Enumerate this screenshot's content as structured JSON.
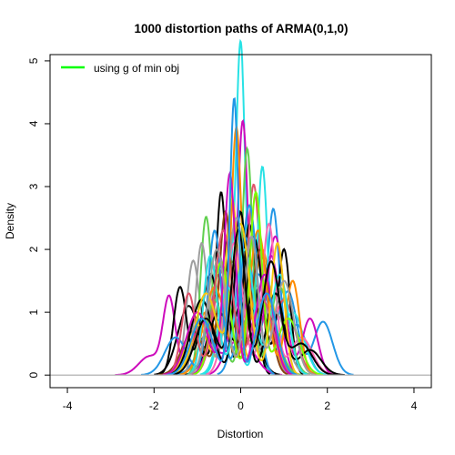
{
  "chart_data": {
    "type": "line",
    "title": "1000 distortion paths of ARMA(0,1,0)",
    "xlabel": "Distortion",
    "ylabel": "Density",
    "xlim": [
      -4.4,
      4.4
    ],
    "ylim": [
      -0.2,
      5.1
    ],
    "xticks": [
      -4,
      -2,
      0,
      2,
      4
    ],
    "yticks": [
      0,
      1,
      2,
      3,
      4,
      5
    ],
    "x_tick_labels": [
      "-4",
      "-2",
      "0",
      "2",
      "4"
    ],
    "y_tick_labels": [
      "0",
      "1",
      "2",
      "3",
      "4",
      "5"
    ],
    "n_paths": 1000,
    "reference_line": {
      "y": 0,
      "color": "#bebebe"
    },
    "legend": {
      "position": "top-left",
      "entries": [
        {
          "label": "using g of min obj",
          "color": "#00ff00"
        }
      ]
    },
    "palette": [
      "#000000",
      "#df536b",
      "#61d04f",
      "#2297e6",
      "#28e2e5",
      "#cd0bbc",
      "#f5c710",
      "#9e9e9e",
      "#ff8c00",
      "#8b4513",
      "#7cfc00",
      "#ff69b4"
    ],
    "series": [
      {
        "name": "path-cyan-tallest",
        "color": "#28e2e5",
        "peaks": [
          [
            0.0,
            4.8,
            0.1
          ],
          [
            0.3,
            1.0,
            0.15
          ],
          [
            -0.3,
            1.5,
            0.18
          ]
        ]
      },
      {
        "name": "path-magenta",
        "color": "#cd0bbc",
        "peaks": [
          [
            0.05,
            4.0,
            0.12
          ],
          [
            -0.5,
            1.6,
            0.2
          ],
          [
            0.7,
            1.9,
            0.2
          ]
        ]
      },
      {
        "name": "path-orange",
        "color": "#ff8c00",
        "peaks": [
          [
            -0.1,
            3.9,
            0.12
          ],
          [
            0.5,
            2.0,
            0.2
          ],
          [
            -0.8,
            1.0,
            0.25
          ]
        ]
      },
      {
        "name": "path-black-a",
        "color": "#000000",
        "peaks": [
          [
            -0.45,
            2.9,
            0.12
          ],
          [
            0.2,
            2.4,
            0.15
          ],
          [
            -1.2,
            1.1,
            0.25
          ]
        ]
      },
      {
        "name": "path-blue-wide",
        "color": "#2297e6",
        "peaks": [
          [
            1.9,
            0.85,
            0.22
          ],
          [
            1.1,
            1.3,
            0.2
          ],
          [
            0.4,
            1.6,
            0.25
          ],
          [
            -0.6,
            0.9,
            0.3
          ]
        ]
      },
      {
        "name": "path-magenta-left",
        "color": "#cd0bbc",
        "peaks": [
          [
            -1.65,
            1.2,
            0.14
          ],
          [
            -2.1,
            0.3,
            0.25
          ],
          [
            -0.9,
            0.8,
            0.25
          ],
          [
            0.0,
            0.6,
            0.3
          ]
        ]
      },
      {
        "name": "path-gray",
        "color": "#9e9e9e",
        "peaks": [
          [
            -1.1,
            1.8,
            0.15
          ],
          [
            -0.5,
            1.9,
            0.2
          ],
          [
            0.4,
            1.4,
            0.25
          ]
        ]
      },
      {
        "name": "path-green-a",
        "color": "#61d04f",
        "peaks": [
          [
            -0.8,
            2.5,
            0.13
          ],
          [
            -0.2,
            1.8,
            0.2
          ],
          [
            0.6,
            1.1,
            0.25
          ]
        ]
      },
      {
        "name": "path-black-b",
        "color": "#000000",
        "peaks": [
          [
            -1.4,
            1.4,
            0.15
          ],
          [
            -0.7,
            1.6,
            0.2
          ],
          [
            0.1,
            1.3,
            0.25
          ]
        ]
      },
      {
        "name": "path-blue-b",
        "color": "#2297e6",
        "peaks": [
          [
            0.75,
            2.6,
            0.14
          ],
          [
            0.1,
            2.2,
            0.2
          ],
          [
            1.3,
            0.8,
            0.22
          ]
        ]
      },
      {
        "name": "path-red",
        "color": "#df536b",
        "peaks": [
          [
            0.3,
            3.0,
            0.14
          ],
          [
            -0.4,
            1.7,
            0.22
          ],
          [
            1.0,
            1.2,
            0.25
          ]
        ]
      },
      {
        "name": "path-yellow",
        "color": "#f5c710",
        "peaks": [
          [
            -0.2,
            2.8,
            0.15
          ],
          [
            0.6,
            1.5,
            0.2
          ],
          [
            -1.0,
            0.8,
            0.25
          ]
        ]
      },
      {
        "name": "path-cyan-b",
        "color": "#28e2e5",
        "peaks": [
          [
            0.5,
            3.3,
            0.12
          ],
          [
            -0.3,
            1.4,
            0.2
          ],
          [
            1.2,
            1.0,
            0.25
          ]
        ]
      },
      {
        "name": "path-black-c",
        "color": "#000000",
        "peaks": [
          [
            1.0,
            2.0,
            0.14
          ],
          [
            0.3,
            2.2,
            0.2
          ],
          [
            -0.5,
            1.0,
            0.25
          ]
        ]
      },
      {
        "name": "path-magenta-b",
        "color": "#cd0bbc",
        "peaks": [
          [
            1.6,
            0.9,
            0.18
          ],
          [
            0.8,
            2.2,
            0.2
          ],
          [
            0.0,
            1.2,
            0.25
          ]
        ]
      },
      {
        "name": "path-green-b",
        "color": "#61d04f",
        "peaks": [
          [
            0.15,
            3.6,
            0.12
          ],
          [
            -0.6,
            1.2,
            0.2
          ],
          [
            0.9,
            1.4,
            0.22
          ]
        ]
      },
      {
        "name": "path-brown",
        "color": "#8b4513",
        "peaks": [
          [
            -0.35,
            2.6,
            0.14
          ],
          [
            0.45,
            2.0,
            0.2
          ],
          [
            -1.1,
            0.7,
            0.25
          ]
        ]
      },
      {
        "name": "path-pink",
        "color": "#ff69b4",
        "peaks": [
          [
            0.65,
            2.4,
            0.15
          ],
          [
            -0.15,
            2.1,
            0.2
          ],
          [
            1.4,
            0.6,
            0.25
          ]
        ]
      },
      {
        "name": "path-gray-b",
        "color": "#9e9e9e",
        "peaks": [
          [
            -0.9,
            2.1,
            0.14
          ],
          [
            -0.1,
            2.5,
            0.2
          ],
          [
            0.8,
            1.0,
            0.25
          ]
        ]
      },
      {
        "name": "path-orange-b",
        "color": "#ff8c00",
        "peaks": [
          [
            1.2,
            1.5,
            0.16
          ],
          [
            0.4,
            2.3,
            0.2
          ],
          [
            -0.6,
            1.4,
            0.25
          ]
        ]
      },
      {
        "name": "path-blue-c",
        "color": "#2297e6",
        "peaks": [
          [
            -0.6,
            2.3,
            0.15
          ],
          [
            0.2,
            2.7,
            0.18
          ],
          [
            -1.5,
            0.6,
            0.25
          ]
        ]
      },
      {
        "name": "path-black-d",
        "color": "#000000",
        "peaks": [
          [
            0.0,
            2.6,
            0.14
          ],
          [
            0.8,
            1.3,
            0.2
          ],
          [
            -0.9,
            1.2,
            0.25
          ],
          [
            1.6,
            0.4,
            0.25
          ]
        ]
      },
      {
        "name": "path-cyan-c",
        "color": "#28e2e5",
        "peaks": [
          [
            -0.7,
            1.9,
            0.16
          ],
          [
            0.1,
            2.0,
            0.2
          ],
          [
            0.9,
            1.6,
            0.2
          ]
        ]
      },
      {
        "name": "path-lawngreen",
        "color": "#7cfc00",
        "peaks": [
          [
            0.35,
            2.9,
            0.14
          ],
          [
            -0.45,
            1.8,
            0.2
          ],
          [
            1.1,
            0.9,
            0.25
          ]
        ]
      },
      {
        "name": "path-red-b",
        "color": "#df536b",
        "peaks": [
          [
            -1.2,
            1.3,
            0.16
          ],
          [
            -0.4,
            2.3,
            0.2
          ],
          [
            0.5,
            1.2,
            0.25
          ]
        ]
      },
      {
        "name": "path-magenta-c",
        "color": "#cd0bbc",
        "peaks": [
          [
            -0.25,
            3.2,
            0.13
          ],
          [
            0.55,
            1.6,
            0.2
          ],
          [
            -1.0,
            1.0,
            0.25
          ]
        ]
      },
      {
        "name": "path-yellow-b",
        "color": "#f5c710",
        "peaks": [
          [
            0.85,
            2.1,
            0.15
          ],
          [
            0.0,
            2.4,
            0.2
          ],
          [
            -0.8,
            1.3,
            0.25
          ]
        ]
      },
      {
        "name": "path-gray-c",
        "color": "#9e9e9e",
        "peaks": [
          [
            0.25,
            2.2,
            0.15
          ],
          [
            -0.55,
            2.0,
            0.2
          ],
          [
            1.0,
            1.5,
            0.22
          ]
        ]
      },
      {
        "name": "path-black-e",
        "color": "#000000",
        "peaks": [
          [
            -0.05,
            2.3,
            0.16
          ],
          [
            0.7,
            1.8,
            0.2
          ],
          [
            -0.8,
            0.9,
            0.25
          ],
          [
            1.4,
            0.5,
            0.25
          ]
        ]
      },
      {
        "name": "path-blue-d",
        "color": "#2297e6",
        "peaks": [
          [
            -0.15,
            4.4,
            0.1
          ],
          [
            0.6,
            1.3,
            0.22
          ],
          [
            -0.9,
            0.9,
            0.25
          ]
        ]
      }
    ]
  }
}
